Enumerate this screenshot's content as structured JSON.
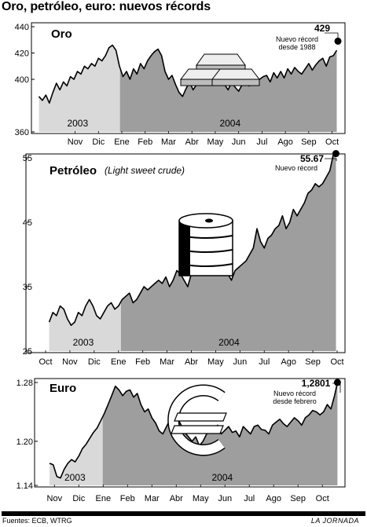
{
  "title": "Oro, petróleo, euro: nuevos récords",
  "source": "Fuentes: ECB, WTRG",
  "publisher": "LA JORNADA",
  "chart_data": [
    {
      "type": "area",
      "title": "Oro",
      "subtitle": "",
      "ylim": [
        360,
        440
      ],
      "yticks": [
        360,
        400,
        420,
        440
      ],
      "xticks": [
        "Nov",
        "Dic",
        "Ene",
        "Feb",
        "Mar",
        "Abr",
        "May",
        "Jun",
        "Jul",
        "Ago",
        "Sep",
        "Oct"
      ],
      "xlim": [
        -1.7,
        11.35
      ],
      "year_labels": [
        {
          "label": "2003",
          "range": [
            -1.7,
            1.92
          ]
        },
        {
          "label": "2004",
          "range": [
            1.92,
            11.35
          ]
        }
      ],
      "series": [
        {
          "x": [
            -1.55,
            -1.4,
            -1.25,
            -1.1,
            -0.95,
            -0.8,
            -0.65,
            -0.5,
            -0.35,
            -0.2,
            -0.05,
            0.1,
            0.25,
            0.4,
            0.55,
            0.7,
            0.85,
            1.0,
            1.15,
            1.3,
            1.45,
            1.6,
            1.75,
            1.9,
            2.05,
            2.2,
            2.35,
            2.5,
            2.65,
            2.8,
            2.95,
            3.1,
            3.25,
            3.4,
            3.55,
            3.7,
            3.85,
            4.0,
            4.15,
            4.3,
            4.45,
            4.6,
            4.75,
            4.9,
            5.05,
            5.2,
            5.35,
            5.5,
            5.65,
            5.8,
            5.95,
            6.1,
            6.25,
            6.4,
            6.55,
            6.7,
            6.85,
            7.0,
            7.15,
            7.3,
            7.45,
            7.6,
            7.75,
            7.9,
            8.05,
            8.2,
            8.35,
            8.5,
            8.65,
            8.8,
            8.95,
            9.1,
            9.25,
            9.4,
            9.55,
            9.7,
            9.85,
            10.0,
            10.15,
            10.3,
            10.45,
            10.6,
            10.75,
            10.9,
            11.05,
            11.2
          ],
          "y": [
            387,
            384,
            388,
            382,
            390,
            397,
            392,
            398,
            395,
            402,
            400,
            406,
            404,
            410,
            408,
            412,
            410,
            416,
            414,
            418,
            424,
            426,
            422,
            410,
            402,
            406,
            400,
            408,
            404,
            412,
            408,
            414,
            418,
            421,
            423,
            418,
            406,
            400,
            403,
            396,
            390,
            387,
            393,
            398,
            392,
            396,
            400,
            402,
            397,
            405,
            400,
            408,
            402,
            396,
            392,
            398,
            394,
            391,
            396,
            400,
            395,
            404,
            399,
            400,
            402,
            403,
            398,
            405,
            401,
            406,
            401,
            408,
            404,
            409,
            406,
            404,
            408,
            412,
            407,
            411,
            414,
            416,
            410,
            417,
            418,
            422
          ]
        }
      ],
      "annotation": {
        "value": "429",
        "text": [
          "Nuevo récord",
          "desde 1988"
        ],
        "x": 11.25,
        "y": 429
      }
    },
    {
      "type": "area",
      "title": "Petróleo",
      "subtitle": "(Light sweet crude)",
      "ylim": [
        25,
        55
      ],
      "yticks": [
        25,
        35,
        45,
        55
      ],
      "xticks": [
        "Oct",
        "Nov",
        "Dic",
        "Ene",
        "Feb",
        "Mar",
        "Abr",
        "May",
        "Jun",
        "Jul",
        "Ago",
        "Sep",
        "Oct"
      ],
      "xlim": [
        0,
        12
      ],
      "year_labels": [
        {
          "label": "2003",
          "range": [
            0,
            3.1
          ]
        },
        {
          "label": "2004",
          "range": [
            3.1,
            12
          ]
        }
      ],
      "series": [
        {
          "x": [
            0.15,
            0.3,
            0.45,
            0.6,
            0.75,
            0.9,
            1.05,
            1.2,
            1.35,
            1.5,
            1.65,
            1.8,
            1.95,
            2.1,
            2.25,
            2.4,
            2.55,
            2.7,
            2.85,
            3.0,
            3.15,
            3.3,
            3.45,
            3.6,
            3.75,
            3.9,
            4.05,
            4.2,
            4.35,
            4.5,
            4.65,
            4.8,
            4.95,
            5.1,
            5.25,
            5.4,
            5.55,
            5.7,
            5.85,
            6.0,
            6.15,
            6.3,
            6.45,
            6.6,
            6.75,
            6.9,
            7.05,
            7.2,
            7.35,
            7.5,
            7.65,
            7.8,
            7.95,
            8.1,
            8.25,
            8.4,
            8.55,
            8.7,
            8.85,
            9.0,
            9.15,
            9.3,
            9.45,
            9.6,
            9.75,
            9.9,
            10.05,
            10.2,
            10.35,
            10.5,
            10.65,
            10.8,
            10.95,
            11.1,
            11.25,
            11.4,
            11.55,
            11.7,
            11.85,
            11.95
          ],
          "y": [
            29.5,
            31,
            30.5,
            32,
            31.5,
            30,
            29,
            29.5,
            31,
            30.5,
            32,
            33,
            32,
            30.5,
            30,
            31,
            32,
            32.5,
            31.5,
            32,
            33,
            33.5,
            34,
            32.5,
            33,
            34,
            35,
            34.5,
            35,
            35.5,
            36,
            35.5,
            36.5,
            35,
            36,
            37.5,
            37,
            36,
            35,
            37,
            38,
            39,
            40,
            39,
            40.5,
            41,
            39,
            38,
            38.5,
            37,
            36,
            37.5,
            38,
            38.5,
            39,
            40,
            41,
            44,
            42,
            41,
            42.5,
            43,
            44,
            44.5,
            46,
            44,
            45,
            47,
            46,
            47,
            48,
            49.5,
            50,
            51,
            50.5,
            51,
            52,
            53,
            55.67,
            55.2
          ]
        }
      ],
      "annotation": {
        "value": "55.67",
        "text": [
          "Nuevo récord"
        ],
        "x": 11.95,
        "y": 55.67
      }
    },
    {
      "type": "area",
      "title": "Euro",
      "subtitle": "",
      "ylim": [
        1.14,
        1.28
      ],
      "yticks": [
        1.14,
        1.2,
        1.28
      ],
      "ytick_labels": [
        "1.14",
        "1.20",
        "1.28"
      ],
      "xticks": [
        "Nov",
        "Dic",
        "Ene",
        "Feb",
        "Mar",
        "Abr",
        "May",
        "Jun",
        "Jul",
        "Ago",
        "Sep",
        "Oct"
      ],
      "xlim": [
        -0.3,
        11.8
      ],
      "year_labels": [
        {
          "label": "2003",
          "range": [
            -0.3,
            1.98
          ]
        },
        {
          "label": "2004",
          "range": [
            1.98,
            11.8
          ]
        }
      ],
      "series": [
        {
          "x": [
            -0.2,
            -0.05,
            0.1,
            0.25,
            0.4,
            0.55,
            0.7,
            0.85,
            1.0,
            1.15,
            1.3,
            1.45,
            1.6,
            1.75,
            1.9,
            2.05,
            2.2,
            2.35,
            2.5,
            2.65,
            2.8,
            2.95,
            3.1,
            3.25,
            3.4,
            3.55,
            3.7,
            3.85,
            4.0,
            4.15,
            4.3,
            4.45,
            4.6,
            4.75,
            4.9,
            5.05,
            5.2,
            5.35,
            5.5,
            5.65,
            5.8,
            5.95,
            6.1,
            6.25,
            6.4,
            6.55,
            6.7,
            6.85,
            7.0,
            7.15,
            7.3,
            7.45,
            7.6,
            7.75,
            7.9,
            8.05,
            8.2,
            8.35,
            8.5,
            8.65,
            8.8,
            8.95,
            9.1,
            9.25,
            9.4,
            9.55,
            9.7,
            9.85,
            10.0,
            10.15,
            10.3,
            10.45,
            10.6,
            10.75,
            10.9,
            11.05,
            11.2,
            11.35,
            11.5,
            11.62
          ],
          "y": [
            1.17,
            1.168,
            1.152,
            1.15,
            1.162,
            1.17,
            1.175,
            1.172,
            1.18,
            1.19,
            1.196,
            1.204,
            1.212,
            1.218,
            1.228,
            1.238,
            1.25,
            1.262,
            1.275,
            1.27,
            1.262,
            1.268,
            1.27,
            1.26,
            1.265,
            1.25,
            1.24,
            1.244,
            1.232,
            1.225,
            1.214,
            1.21,
            1.22,
            1.23,
            1.238,
            1.232,
            1.222,
            1.212,
            1.206,
            1.2,
            1.206,
            1.194,
            1.2,
            1.21,
            1.218,
            1.212,
            1.222,
            1.21,
            1.215,
            1.22,
            1.212,
            1.214,
            1.206,
            1.22,
            1.215,
            1.21,
            1.22,
            1.222,
            1.216,
            1.215,
            1.21,
            1.222,
            1.226,
            1.23,
            1.224,
            1.22,
            1.226,
            1.232,
            1.228,
            1.222,
            1.232,
            1.236,
            1.242,
            1.24,
            1.236,
            1.24,
            1.25,
            1.244,
            1.262,
            1.2801
          ]
        }
      ],
      "annotation": {
        "value": "1,2801",
        "text": [
          "Nuevo récord",
          "desde febrero"
        ],
        "x": 11.62,
        "y": 1.2801
      }
    }
  ]
}
